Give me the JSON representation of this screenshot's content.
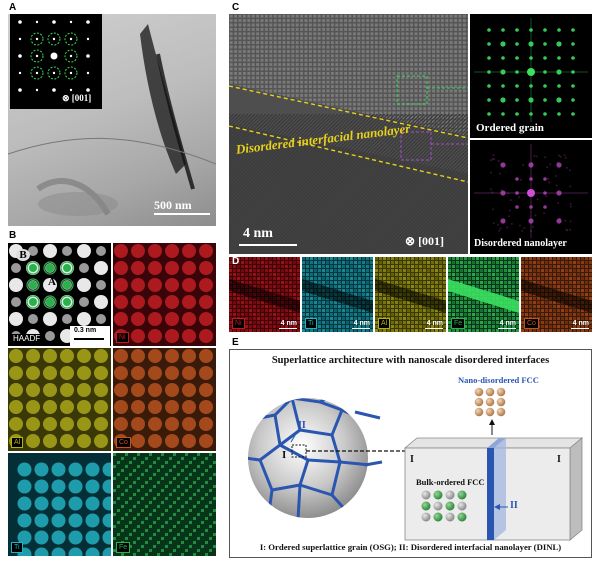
{
  "panel_labels": {
    "a": "A",
    "b": "B",
    "c": "C",
    "d": "D",
    "e": "E"
  },
  "panel_a": {
    "scale_bar": "500 nm",
    "zone_axis": "[001]"
  },
  "panel_b": {
    "scale_bar": "0.3 nm",
    "site_b": "B",
    "site_a": "A",
    "tiles": [
      {
        "label": "HAADF",
        "color": "#ffffff"
      },
      {
        "label": "Ni",
        "color": "#c8161d"
      },
      {
        "label": "Al",
        "color": "#b4b018"
      },
      {
        "label": "Co",
        "color": "#c2521e"
      },
      {
        "label": "Ti",
        "color": "#1fb3c4"
      },
      {
        "label": "Fe",
        "color": "#2bb34a"
      }
    ]
  },
  "panel_c": {
    "interface_label": "Disordered interfacial nanolayer",
    "scale_bar": "4 nm",
    "zone_axis": "[001]",
    "fft_top_label": "Ordered grain",
    "fft_bottom_label": "Disordered nanolayer"
  },
  "panel_d": {
    "tiles": [
      {
        "label": "Ni",
        "scale": "4 nm",
        "color": "#c8161d"
      },
      {
        "label": "Ti",
        "scale": "4 nm",
        "color": "#1fb3c4"
      },
      {
        "label": "Al",
        "scale": "4 nm",
        "color": "#b4b018"
      },
      {
        "label": "Fe",
        "scale": "4 nm",
        "color": "#2bb34a"
      },
      {
        "label": "Co",
        "scale": "4 nm",
        "color": "#c2521e"
      }
    ]
  },
  "panel_e": {
    "title": "Superlattice architecture with nanoscale disordered interfaces",
    "nano_label": "Nano-disordered FCC",
    "bulk_label": "Bulk-ordered FCC",
    "grain_one": "I",
    "grain_two": "II",
    "slab_left": "I",
    "slab_right": "I",
    "slab_mid": "II",
    "caption": "I: Ordered superlattice grain (OSG); II: Disordered interfacial nanolayer (DINL)",
    "boundary_color": "#2a55b0"
  }
}
